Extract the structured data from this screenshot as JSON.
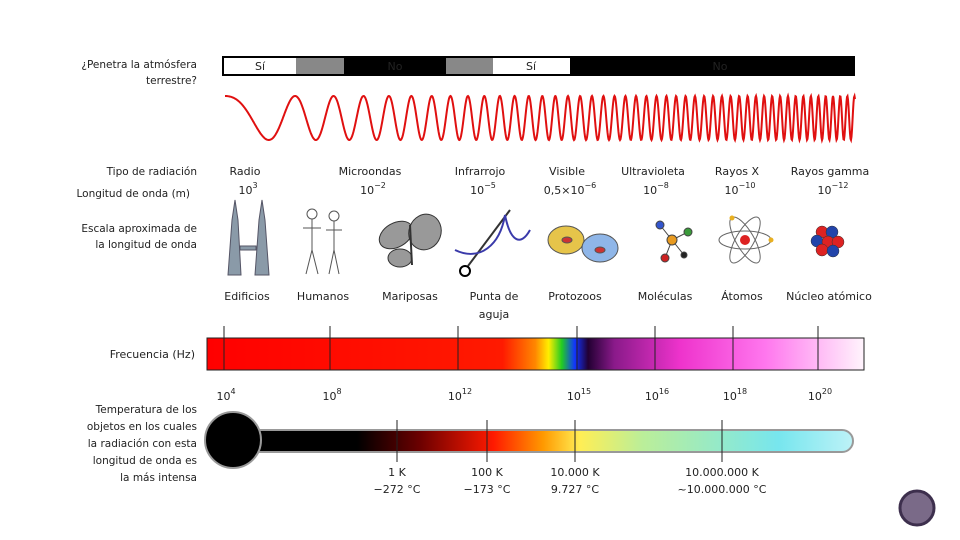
{
  "atmosphere": {
    "label": [
      "¿Penetra la atmósfera",
      "terrestre?"
    ],
    "segments": [
      "Sí",
      "No",
      "Sí",
      "No"
    ]
  },
  "row_labels": {
    "type": "Tipo de radiación",
    "wavelength": "Longitud de onda (m)",
    "scale": [
      "Escala aproximada de",
      "la longitud de onda"
    ]
  },
  "radiation": [
    {
      "name": "Radio",
      "wavelength": {
        "base": "10",
        "exp": "3"
      }
    },
    {
      "name": "Microondas",
      "wavelength": {
        "base": "10",
        "exp": "−2"
      }
    },
    {
      "name": "Infrarrojo",
      "wavelength": {
        "base": "10",
        "exp": "−5"
      }
    },
    {
      "name": "Visible",
      "wavelength": {
        "base": "0,5×10",
        "exp": "−6"
      }
    },
    {
      "name": "Ultravioleta",
      "wavelength": {
        "base": "10",
        "exp": "−8"
      }
    },
    {
      "name": "Rayos X",
      "wavelength": {
        "base": "10",
        "exp": "−10"
      }
    },
    {
      "name": "Rayos gamma",
      "wavelength": {
        "base": "10",
        "exp": "−12"
      }
    }
  ],
  "scale_items": [
    [
      "Edificios"
    ],
    [
      "Humanos"
    ],
    [
      "Mariposas"
    ],
    [
      "Punta de",
      "aguja"
    ],
    [
      "Protozoos"
    ],
    [
      "Moléculas"
    ],
    [
      "Átomos"
    ],
    [
      "Núcleo atómico"
    ]
  ],
  "frequency": {
    "label": "Frecuencia (Hz)",
    "ticks": [
      {
        "base": "10",
        "exp": "4"
      },
      {
        "base": "10",
        "exp": "8"
      },
      {
        "base": "10",
        "exp": "12"
      },
      {
        "base": "10",
        "exp": "15"
      },
      {
        "base": "10",
        "exp": "16"
      },
      {
        "base": "10",
        "exp": "18"
      },
      {
        "base": "10",
        "exp": "20"
      }
    ]
  },
  "temperature": {
    "label": [
      "Temperatura de los",
      "objetos en los cuales",
      "la radiación con esta",
      "longitud de onda es",
      "la más intensa"
    ],
    "marks": [
      {
        "kelvin": "1 K",
        "celsius": "−272 °C"
      },
      {
        "kelvin": "100 K",
        "celsius": "−173 °C"
      },
      {
        "kelvin": "10.000 K",
        "celsius": "9.727 °C"
      },
      {
        "kelvin": "10.000.000 K",
        "celsius": "~10.000.000 °C"
      }
    ]
  }
}
